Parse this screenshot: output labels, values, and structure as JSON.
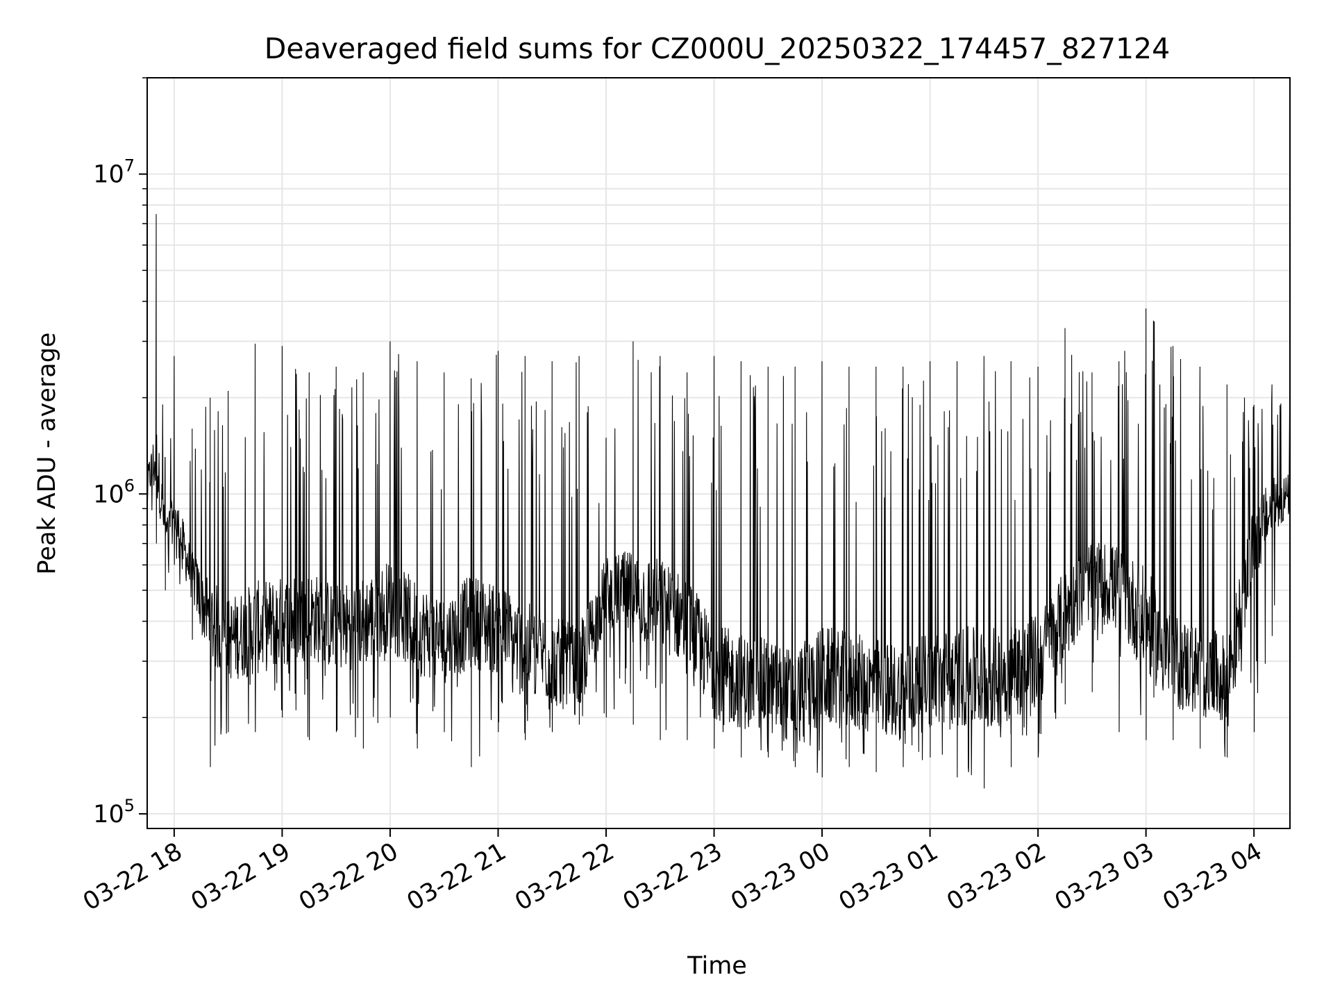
{
  "chart_data": {
    "type": "line",
    "title": "Deaveraged field sums for CZ000U_20250322_174457_827124",
    "xlabel": "Time",
    "ylabel": "Peak ADU - average",
    "yscale": "log",
    "ylim": [
      90000,
      20000000
    ],
    "xlim": [
      "2025-03-22 17:45",
      "2025-03-23 04:20"
    ],
    "x_ticks": [
      {
        "time": "2025-03-22 18:00",
        "label": "03-22 18"
      },
      {
        "time": "2025-03-22 19:00",
        "label": "03-22 19"
      },
      {
        "time": "2025-03-22 20:00",
        "label": "03-22 20"
      },
      {
        "time": "2025-03-22 21:00",
        "label": "03-22 21"
      },
      {
        "time": "2025-03-22 22:00",
        "label": "03-22 22"
      },
      {
        "time": "2025-03-22 23:00",
        "label": "03-22 23"
      },
      {
        "time": "2025-03-23 00:00",
        "label": "03-23 00"
      },
      {
        "time": "2025-03-23 01:00",
        "label": "03-23 01"
      },
      {
        "time": "2025-03-23 02:00",
        "label": "03-23 02"
      },
      {
        "time": "2025-03-23 03:00",
        "label": "03-23 03"
      },
      {
        "time": "2025-03-23 04:00",
        "label": "03-23 04"
      }
    ],
    "y_ticks": [
      {
        "value": 100000,
        "base": "10",
        "exp": "5"
      },
      {
        "value": 1000000,
        "base": "10",
        "exp": "6"
      },
      {
        "value": 10000000,
        "base": "10",
        "exp": "7"
      }
    ],
    "grid": true,
    "legend": "none",
    "series": [
      {
        "color": "#000000",
        "x": [
          "2025-03-22 17:45",
          "2025-03-22 17:50",
          "2025-03-22 17:55",
          "2025-03-22 18:00",
          "2025-03-22 18:10",
          "2025-03-22 18:20",
          "2025-03-22 18:30",
          "2025-03-22 18:45",
          "2025-03-22 19:00",
          "2025-03-22 19:15",
          "2025-03-22 19:30",
          "2025-03-22 19:45",
          "2025-03-22 20:00",
          "2025-03-22 20:15",
          "2025-03-22 20:30",
          "2025-03-22 20:45",
          "2025-03-22 21:00",
          "2025-03-22 21:15",
          "2025-03-22 21:30",
          "2025-03-22 21:45",
          "2025-03-22 22:00",
          "2025-03-22 22:15",
          "2025-03-22 22:30",
          "2025-03-22 22:45",
          "2025-03-22 23:00",
          "2025-03-22 23:15",
          "2025-03-22 23:30",
          "2025-03-22 23:45",
          "2025-03-23 00:00",
          "2025-03-23 00:15",
          "2025-03-23 00:30",
          "2025-03-23 00:45",
          "2025-03-23 01:00",
          "2025-03-23 01:15",
          "2025-03-23 01:30",
          "2025-03-23 01:45",
          "2025-03-23 02:00",
          "2025-03-23 02:15",
          "2025-03-23 02:30",
          "2025-03-23 02:45",
          "2025-03-23 03:00",
          "2025-03-23 03:15",
          "2025-03-23 03:30",
          "2025-03-23 03:45",
          "2025-03-23 04:00",
          "2025-03-23 04:10",
          "2025-03-23 04:20"
        ],
        "y": [
          1100000,
          1300000,
          750000,
          850000,
          550000,
          400000,
          350000,
          380000,
          400000,
          420000,
          380000,
          400000,
          450000,
          380000,
          350000,
          400000,
          380000,
          330000,
          300000,
          280000,
          500000,
          480000,
          450000,
          400000,
          280000,
          260000,
          250000,
          230000,
          270000,
          260000,
          250000,
          240000,
          260000,
          270000,
          260000,
          280000,
          300000,
          420000,
          550000,
          500000,
          400000,
          300000,
          280000,
          260000,
          700000,
          900000,
          1000000
        ],
        "y_max": [
          1900000,
          7500000,
          1300000,
          2700000,
          1600000,
          2000000,
          2100000,
          2950000,
          2900000,
          2400000,
          2500000,
          2400000,
          3000000,
          2600000,
          2400000,
          2300000,
          2800000,
          2700000,
          2600000,
          2700000,
          1500000,
          3000000,
          2700000,
          2400000,
          2700000,
          2600000,
          2500000,
          2500000,
          2600000,
          2500000,
          2500000,
          2500000,
          2600000,
          2600000,
          2700000,
          2600000,
          2500000,
          3300000,
          2400000,
          2600000,
          3800000,
          2900000,
          2500000,
          2200000,
          1900000,
          2200000,
          2700000
        ],
        "y_min": [
          900000,
          700000,
          500000,
          600000,
          350000,
          140000,
          180000,
          180000,
          200000,
          170000,
          180000,
          160000,
          200000,
          160000,
          180000,
          140000,
          180000,
          170000,
          180000,
          190000,
          200000,
          190000,
          170000,
          170000,
          160000,
          150000,
          150000,
          140000,
          130000,
          140000,
          135000,
          140000,
          150000,
          130000,
          120000,
          140000,
          150000,
          220000,
          240000,
          180000,
          170000,
          170000,
          160000,
          150000,
          180000,
          360000,
          800000
        ]
      }
    ]
  }
}
